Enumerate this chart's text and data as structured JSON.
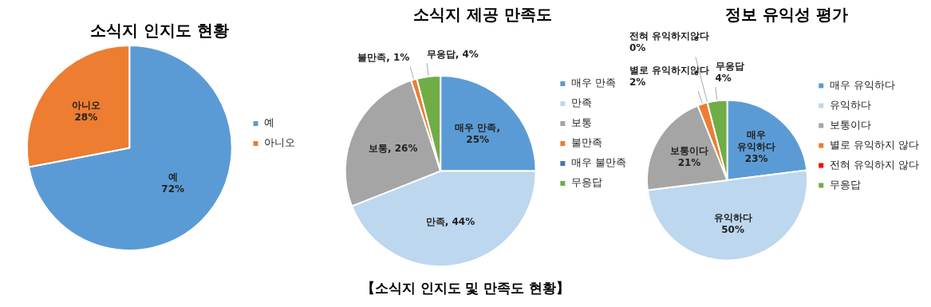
{
  "chart_data": [
    {
      "type": "pie",
      "title": "소식지 인지도 현황",
      "categories": [
        "예",
        "아니오"
      ],
      "values": [
        72,
        28
      ],
      "colors": [
        "#5b9bd5",
        "#ed7d31"
      ],
      "value_labels": [
        "예\n72%",
        "아니오\n28%"
      ],
      "legend": "right"
    },
    {
      "type": "pie",
      "title": "소식지 제공 만족도",
      "categories": [
        "매우 만족",
        "만족",
        "보통",
        "불만족",
        "매우 불만족",
        "무응답"
      ],
      "values": [
        25,
        44,
        26,
        1,
        0,
        4
      ],
      "colors": [
        "#5b9bd5",
        "#bdd7ee",
        "#a5a5a5",
        "#ed7d31",
        "#4472c4",
        "#70ad47"
      ],
      "value_labels": [
        "매우 만족,\n25%",
        "만족, 44%",
        "보통, 26%",
        "불만족, 1%",
        null,
        "무응답, 4%"
      ],
      "legend": "right",
      "annotations": [
        "【소식지 인지도 및 만족도 현황】"
      ]
    },
    {
      "type": "pie",
      "title": "정보 유익성 평가",
      "categories": [
        "매우 유익하다",
        "유익하다",
        "보통이다",
        "별로 유익하지 않다",
        "전혀 유익하지 않다",
        "무응답"
      ],
      "values": [
        23,
        50,
        21,
        2,
        0,
        4
      ],
      "colors": [
        "#5b9bd5",
        "#bdd7ee",
        "#a5a5a5",
        "#ed7d31",
        "#ff0000",
        "#70ad47"
      ],
      "value_labels": [
        "매우\n유익하다\n23%",
        "유익하다\n50%",
        "보통이다\n21%",
        "별로 유익하지않다\n2%",
        "전혀 유익하지않다\n0%",
        "무응답\n4%"
      ],
      "legend": "right"
    }
  ]
}
